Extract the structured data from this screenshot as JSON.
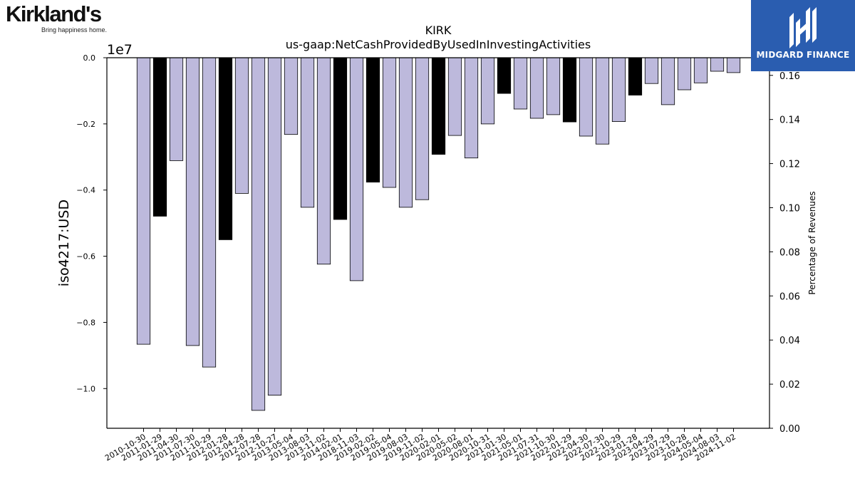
{
  "brand_left": {
    "name": "Kirkland's",
    "tagline": "Bring happiness home."
  },
  "brand_right": {
    "name": "MIDGARD FINANCE",
    "color": "#2a5db0"
  },
  "colors": {
    "bar_default": "#bdb9dc",
    "bar_highlight": "#000000",
    "edge": "#000000"
  },
  "chart_data": {
    "type": "bar",
    "title": "KIRK",
    "subtitle": "us-gaap:NetCashProvidedByUsedInInvestingActivities",
    "ylabel": "iso4217:USD",
    "y2label": "Percentage of Revenues",
    "y_offset_label": "1e7",
    "ylim": [
      -1.12,
      0.0
    ],
    "yticks": [
      0.0,
      -0.2,
      -0.4,
      -0.6,
      -0.8,
      -1.0
    ],
    "ytick_labels": [
      "0.0",
      "−0.2",
      "−0.4",
      "−0.6",
      "−0.8",
      "−1.0"
    ],
    "y2lim": [
      0.0,
      0.168
    ],
    "y2ticks": [
      0.0,
      0.02,
      0.04,
      0.06,
      0.08,
      0.1,
      0.12,
      0.14,
      0.16
    ],
    "y2tick_labels": [
      "0.00",
      "0.02",
      "0.04",
      "0.06",
      "0.08",
      "0.10",
      "0.12",
      "0.14",
      "0.16"
    ],
    "categories": [
      "2010-10-30",
      "2011-01-29",
      "2011-04-30",
      "2011-07-30",
      "2011-10-29",
      "2012-01-28",
      "2012-04-28",
      "2012-07-28",
      "2012-10-27",
      "2013-05-04",
      "2013-08-03",
      "2013-11-02",
      "2014-02-01",
      "2018-11-03",
      "2019-02-02",
      "2019-05-04",
      "2019-08-03",
      "2019-11-02",
      "2020-02-01",
      "2020-05-02",
      "2020-08-01",
      "2020-10-31",
      "2021-01-30",
      "2021-05-01",
      "2021-07-31",
      "2021-10-30",
      "2022-01-29",
      "2022-04-30",
      "2022-07-30",
      "2022-10-29",
      "2023-01-28",
      "2023-04-29",
      "2023-07-29",
      "2023-10-28",
      "2024-05-04",
      "2024-08-03",
      "2024-11-02"
    ],
    "values": [
      -0.866,
      -0.479,
      -0.311,
      -0.87,
      -0.935,
      -0.55,
      -0.41,
      -1.066,
      -1.02,
      -0.232,
      -0.452,
      -0.624,
      -0.489,
      -0.674,
      -0.376,
      -0.392,
      -0.452,
      -0.429,
      -0.292,
      -0.235,
      -0.303,
      -0.2,
      -0.108,
      -0.155,
      -0.183,
      -0.172,
      -0.194,
      -0.237,
      -0.261,
      -0.193,
      -0.113,
      -0.078,
      -0.142,
      -0.097,
      -0.076,
      -0.041,
      -0.045
    ],
    "highlight": [
      false,
      true,
      false,
      false,
      false,
      true,
      false,
      false,
      false,
      false,
      false,
      false,
      true,
      false,
      true,
      false,
      false,
      false,
      true,
      false,
      false,
      false,
      true,
      false,
      false,
      false,
      true,
      false,
      false,
      false,
      true,
      false,
      false,
      false,
      false,
      false,
      false
    ]
  }
}
